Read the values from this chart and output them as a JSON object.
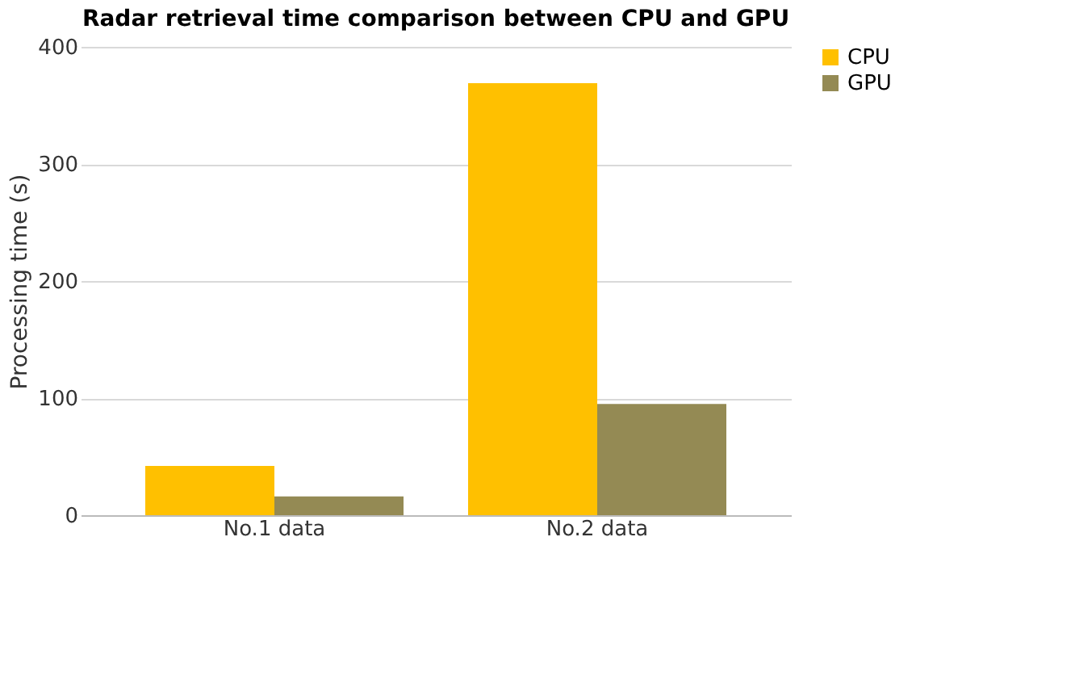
{
  "chart_data": {
    "type": "bar",
    "title": "Radar retrieval time comparison between CPU and GPU",
    "ylabel": "Processing time (s)",
    "categories": [
      "No.1 data",
      "No.2 data"
    ],
    "series": [
      {
        "name": "CPU",
        "color": "#ffc000",
        "values": [
          42,
          369
        ]
      },
      {
        "name": "GPU",
        "color": "#948a54",
        "values": [
          16,
          95
        ]
      }
    ],
    "ylim": [
      0,
      400
    ],
    "yticks": [
      0,
      100,
      200,
      300,
      400
    ],
    "grid": "y",
    "legend": "right"
  }
}
